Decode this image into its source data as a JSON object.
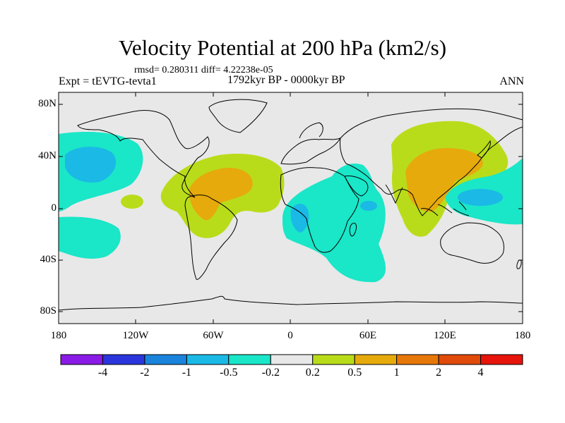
{
  "title": "Velocity Potential at 200 hPa (km2/s)",
  "stats": "rmsd= 0.280311 diff= 4.22238e-05",
  "experiment": "Expt = tEVTG-tevta1",
  "period": "1792kyr BP - 0000kyr BP",
  "season": "ANN",
  "map": {
    "lat_labels": [
      "80N",
      "40N",
      "0",
      "40S",
      "80S"
    ],
    "lon_labels": [
      "180",
      "120W",
      "60W",
      "0",
      "60E",
      "120E",
      "180"
    ]
  },
  "colorbar": {
    "labels": [
      "-4",
      "-2",
      "-1",
      "-0.5",
      "-0.2",
      "0.2",
      "0.5",
      "1",
      "2",
      "4"
    ],
    "colors": [
      "#8a1ae6",
      "#2a36dc",
      "#1a83dc",
      "#1ab9e6",
      "#1ae6c8",
      "#e8e8e8",
      "#b9dc1a",
      "#e6aa0c",
      "#e6780a",
      "#e04a0a",
      "#e6140a"
    ]
  },
  "colors": {
    "background_field": "#e8e8e8",
    "negative_1": "#1ae6c8",
    "negative_2": "#1ab9e6",
    "positive_1": "#b9dc1a",
    "positive_2": "#e6aa0c"
  }
}
